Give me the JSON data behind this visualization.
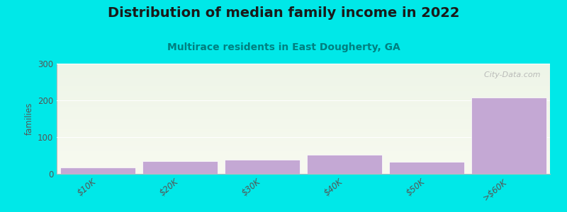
{
  "title": "Distribution of median family income in 2022",
  "subtitle": "Multirace residents in East Dougherty, GA",
  "categories": [
    "$10K",
    "$20K",
    "$30K",
    "$40K",
    "$50K",
    ">$60K"
  ],
  "values": [
    18,
    35,
    38,
    52,
    32,
    208
  ],
  "bar_color": "#c4a8d4",
  "bar_edge_color": "#ffffff",
  "ylabel": "families",
  "ylim": [
    0,
    300
  ],
  "yticks": [
    0,
    100,
    200,
    300
  ],
  "background_color": "#00e8e8",
  "plot_bg_top": "#eef5e8",
  "plot_bg_bottom": "#f8faf0",
  "title_fontsize": 14,
  "subtitle_fontsize": 10,
  "watermark": "  City-Data.com",
  "watermark_icon": "●"
}
